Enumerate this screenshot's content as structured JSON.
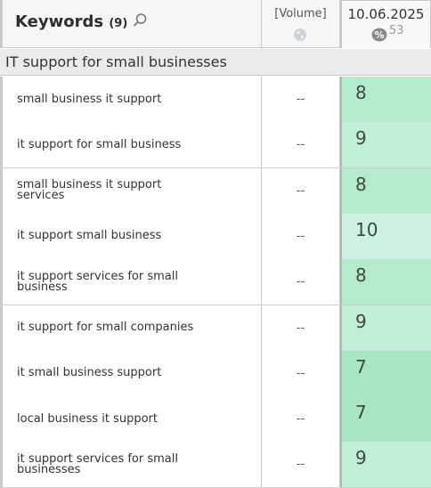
{
  "header": {
    "keywords_label": "Keywords",
    "keywords_count": "(9)",
    "volume_label": "[Volume]",
    "date_label": "10.06.2025",
    "percent_value": "53"
  },
  "group": {
    "label": "IT support for small businesses"
  },
  "rows": [
    {
      "keyword": "small business it support",
      "volume": "--",
      "rank": "8"
    },
    {
      "keyword": "it support for small business",
      "volume": "--",
      "rank": "9"
    },
    {
      "keyword": "small business it support services",
      "volume": "--",
      "rank": "8"
    },
    {
      "keyword": "it support small business",
      "volume": "--",
      "rank": "10"
    },
    {
      "keyword": "it support services for small business",
      "volume": "--",
      "rank": "8"
    },
    {
      "keyword": "it support for small companies",
      "volume": "--",
      "rank": "9"
    },
    {
      "keyword": "it small business support",
      "volume": "--",
      "rank": "7"
    },
    {
      "keyword": "local business it support",
      "volume": "--",
      "rank": "7"
    },
    {
      "keyword": "it support services for small businesses",
      "volume": "--",
      "rank": "9"
    }
  ],
  "colors": {
    "rank_7": "#a8e6c2",
    "rank_8": "#b4ebcc",
    "rank_9": "#c0eed6",
    "rank_10": "#cdf1df"
  }
}
